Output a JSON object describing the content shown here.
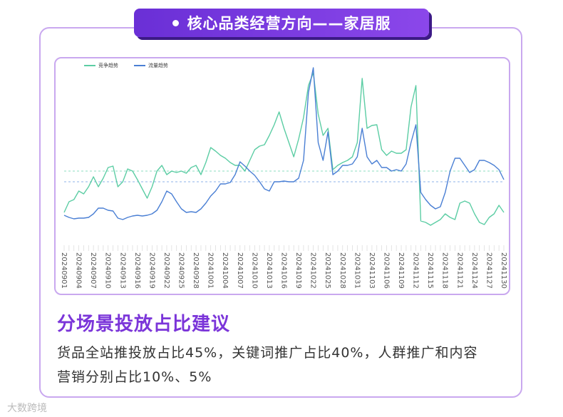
{
  "header": {
    "title": "核心品类经营方向——家居服"
  },
  "chart_data": {
    "type": "line",
    "categories": [
      "20240901",
      null,
      null,
      "20240904",
      null,
      null,
      "20240907",
      null,
      null,
      "20240910",
      null,
      null,
      "20240913",
      null,
      null,
      "20240916",
      null,
      null,
      "20240919",
      null,
      null,
      "20240922",
      null,
      null,
      "20240925",
      null,
      null,
      "20240928",
      null,
      null,
      "20241001",
      null,
      null,
      "20241004",
      null,
      null,
      "20241007",
      null,
      null,
      "20241010",
      null,
      null,
      "20241013",
      null,
      null,
      "20241016",
      null,
      null,
      "20241019",
      null,
      null,
      "20241022",
      null,
      null,
      "20241025",
      null,
      null,
      "20241028",
      null,
      null,
      "20241031",
      null,
      null,
      "20241103",
      null,
      null,
      "20241106",
      null,
      null,
      "20241109",
      null,
      null,
      "20241112",
      null,
      null,
      "20241115",
      null,
      null,
      "20241118",
      null,
      null,
      "20241121",
      null,
      null,
      "20241124",
      null,
      null,
      "20241127",
      null,
      null,
      "20241130"
    ],
    "series": [
      {
        "name": "竞争趋势",
        "color": "#5ccda4",
        "values": [
          42,
          57,
          60,
          72,
          68,
          78,
          92,
          78,
          90,
          105,
          107,
          78,
          85,
          103,
          100,
          88,
          75,
          62,
          78,
          100,
          108,
          95,
          100,
          98,
          100,
          97,
          105,
          108,
          95,
          112,
          133,
          128,
          122,
          118,
          112,
          108,
          108,
          100,
          115,
          130,
          135,
          137,
          150,
          165,
          183,
          160,
          140,
          120,
          145,
          175,
          220,
          238,
          180,
          150,
          160,
          102,
          108,
          112,
          115,
          120,
          140,
          230,
          160,
          164,
          165,
          130,
          122,
          128,
          125,
          125,
          130,
          190,
          220,
          30,
          28,
          24,
          28,
          32,
          40,
          35,
          32,
          55,
          58,
          55,
          40,
          28,
          25,
          35,
          40,
          52,
          42
        ]
      },
      {
        "name": "流量趋势",
        "color": "#4a7fd4",
        "values": [
          38,
          35,
          33,
          34,
          34,
          35,
          40,
          48,
          48,
          45,
          44,
          34,
          32,
          35,
          37,
          38,
          37,
          38,
          40,
          45,
          57,
          72,
          68,
          57,
          47,
          42,
          43,
          42,
          47,
          55,
          65,
          72,
          82,
          82,
          84,
          95,
          113,
          107,
          100,
          94,
          85,
          75,
          72,
          85,
          85,
          86,
          85,
          85,
          90,
          115,
          210,
          245,
          140,
          115,
          155,
          95,
          100,
          108,
          108,
          110,
          120,
          160,
          120,
          110,
          115,
          105,
          105,
          100,
          102,
          100,
          110,
          140,
          165,
          70,
          60,
          52,
          47,
          50,
          70,
          100,
          118,
          118,
          108,
          98,
          102,
          115,
          115,
          112,
          108,
          102,
          88
        ]
      }
    ],
    "mean_lines": [
      {
        "value": 100,
        "color": "#8ddcc0"
      },
      {
        "value": 85,
        "color": "#8fb3e8"
      }
    ],
    "ylim": [
      0,
      250
    ]
  },
  "section": {
    "title": "分场景投放占比建议",
    "body_lines": [
      "货品全站推投放占比45%，关键词推广占比40%，人群推广和内容",
      "营销分别占比10%、5%"
    ]
  },
  "watermark": "大数跨境"
}
